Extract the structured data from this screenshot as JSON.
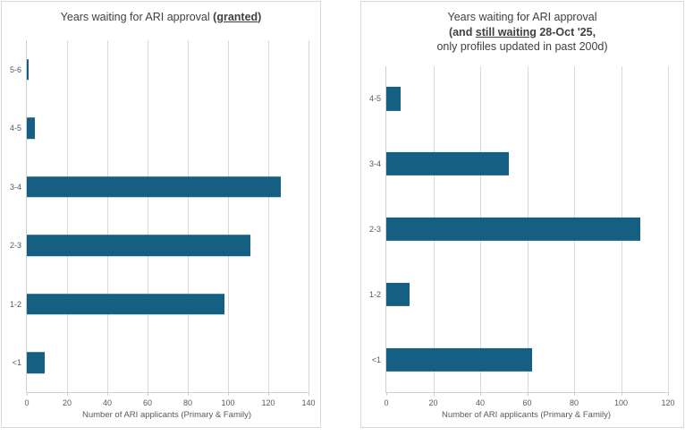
{
  "colors": {
    "bar": "#156082",
    "grid": "#d9d9d9",
    "axis": "#cfcfcf",
    "panel_border": "#d9d9d9",
    "label_text": "#595959",
    "title_text": "#404040",
    "background": "#ffffff"
  },
  "chart_data": [
    {
      "type": "bar",
      "orientation": "horizontal",
      "title": "Years waiting for ARI approval (granted)",
      "title_lines": [
        [
          {
            "t": "Years waiting for ARI approval ",
            "b": false,
            "u": false
          },
          {
            "t": "(",
            "b": true,
            "u": false
          },
          {
            "t": "granted",
            "b": true,
            "u": true
          },
          {
            "t": ")",
            "b": true,
            "u": false
          }
        ]
      ],
      "categories": [
        "5-6",
        "4-5",
        "3-4",
        "2-3",
        "1-2",
        "<1"
      ],
      "values": [
        1,
        4,
        126,
        111,
        98,
        9
      ],
      "xlabel": "Number of ARI applicants (Primary & Family)",
      "xlim": [
        0,
        140
      ],
      "xticks": [
        0,
        20,
        40,
        60,
        80,
        100,
        120,
        140
      ],
      "grid": true,
      "legend": null
    },
    {
      "type": "bar",
      "orientation": "horizontal",
      "title": "Years waiting for ARI approval (and still waiting 28-Oct '25, only profiles updated in past 200d)",
      "title_lines": [
        [
          {
            "t": "Years waiting for ARI approval",
            "b": false,
            "u": false
          }
        ],
        [
          {
            "t": "(and ",
            "b": true,
            "u": false
          },
          {
            "t": "still waiting",
            "b": true,
            "u": true
          },
          {
            "t": " 28-Oct '25,",
            "b": true,
            "u": false
          }
        ],
        [
          {
            "t": "only profiles updated in past 200d)",
            "b": false,
            "u": false
          }
        ]
      ],
      "categories": [
        "4-5",
        "3-4",
        "2-3",
        "1-2",
        "<1"
      ],
      "values": [
        6,
        52,
        108,
        10,
        62
      ],
      "xlabel": "Number of ARI applicants (Primary & Family)",
      "xlim": [
        0,
        120
      ],
      "xticks": [
        0,
        20,
        40,
        60,
        80,
        100,
        120
      ],
      "grid": true,
      "legend": null
    }
  ]
}
